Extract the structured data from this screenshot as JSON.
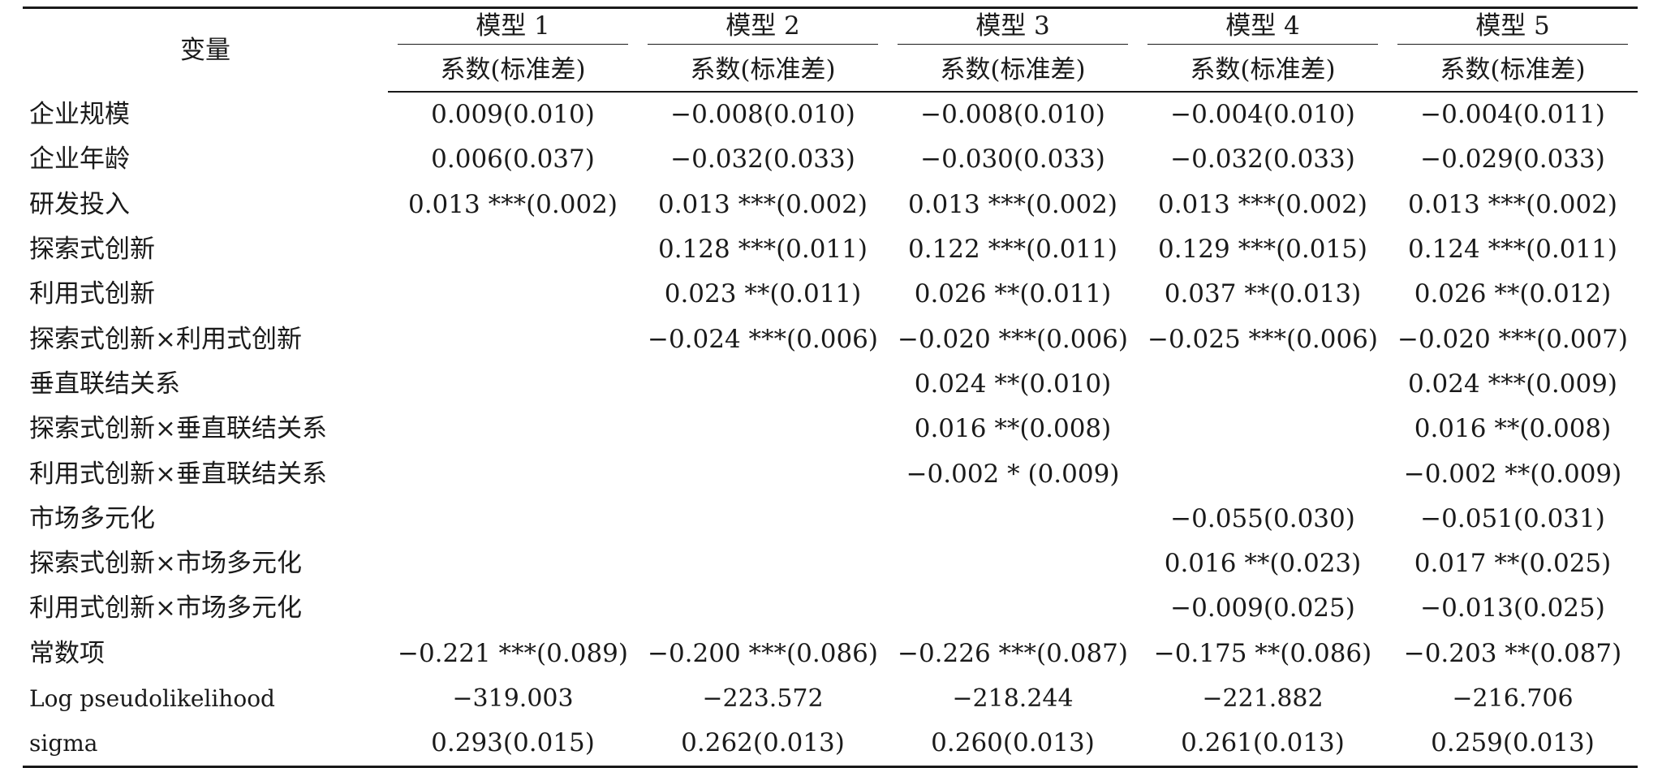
{
  "header": {
    "variable_label": "变量",
    "models": [
      "模型 1",
      "模型 2",
      "模型 3",
      "模型 4",
      "模型 5"
    ],
    "sub_label": "系数(标准差)"
  },
  "rows": [
    {
      "label": "企业规模",
      "values": [
        "0.009(0.010)",
        "−0.008(0.010)",
        "−0.008(0.010)",
        "−0.004(0.010)",
        "−0.004(0.011)"
      ]
    },
    {
      "label": "企业年龄",
      "values": [
        "0.006(0.037)",
        "−0.032(0.033)",
        "−0.030(0.033)",
        "−0.032(0.033)",
        "−0.029(0.033)"
      ]
    },
    {
      "label": "研发投入",
      "values": [
        "0.013 ***(0.002)",
        "0.013 ***(0.002)",
        "0.013 ***(0.002)",
        "0.013 ***(0.002)",
        "0.013 ***(0.002)"
      ]
    },
    {
      "label": "探索式创新",
      "values": [
        "",
        "0.128 ***(0.011)",
        "0.122 ***(0.011)",
        "0.129 ***(0.015)",
        "0.124 ***(0.011)"
      ]
    },
    {
      "label": "利用式创新",
      "values": [
        "",
        "0.023 **(0.011)",
        "0.026 **(0.011)",
        "0.037 **(0.013)",
        "0.026 **(0.012)"
      ]
    },
    {
      "label": "探索式创新×利用式创新",
      "values": [
        "",
        "−0.024 ***(0.006)",
        "−0.020 ***(0.006)",
        "−0.025 ***(0.006)",
        "−0.020 ***(0.007)"
      ]
    },
    {
      "label": "垂直联结关系",
      "values": [
        "",
        "",
        "0.024 **(0.010)",
        "",
        "0.024 ***(0.009)"
      ]
    },
    {
      "label": "探索式创新×垂直联结关系",
      "values": [
        "",
        "",
        "0.016 **(0.008)",
        "",
        "0.016 **(0.008)"
      ]
    },
    {
      "label": "利用式创新×垂直联结关系",
      "values": [
        "",
        "",
        "−0.002 * (0.009)",
        "",
        "−0.002 **(0.009)"
      ]
    },
    {
      "label": "市场多元化",
      "values": [
        "",
        "",
        "",
        "−0.055(0.030)",
        "−0.051(0.031)"
      ]
    },
    {
      "label": "探索式创新×市场多元化",
      "values": [
        "",
        "",
        "",
        "0.016 **(0.023)",
        "0.017 **(0.025)"
      ]
    },
    {
      "label": "利用式创新×市场多元化",
      "values": [
        "",
        "",
        "",
        "−0.009(0.025)",
        "−0.013(0.025)"
      ]
    },
    {
      "label": "常数项",
      "values": [
        "−0.221 ***(0.089)",
        "−0.200 ***(0.086)",
        "−0.226 ***(0.087)",
        "−0.175 **(0.086)",
        "−0.203 **(0.087)"
      ]
    },
    {
      "label": "Log pseudolikelihood",
      "values": [
        "−319.003",
        "−223.572",
        "−218.244",
        "−221.882",
        "−216.706"
      ]
    },
    {
      "label": "sigma",
      "values": [
        "0.293(0.015)",
        "0.262(0.013)",
        "0.260(0.013)",
        "0.261(0.013)",
        "0.259(0.013)"
      ]
    }
  ]
}
